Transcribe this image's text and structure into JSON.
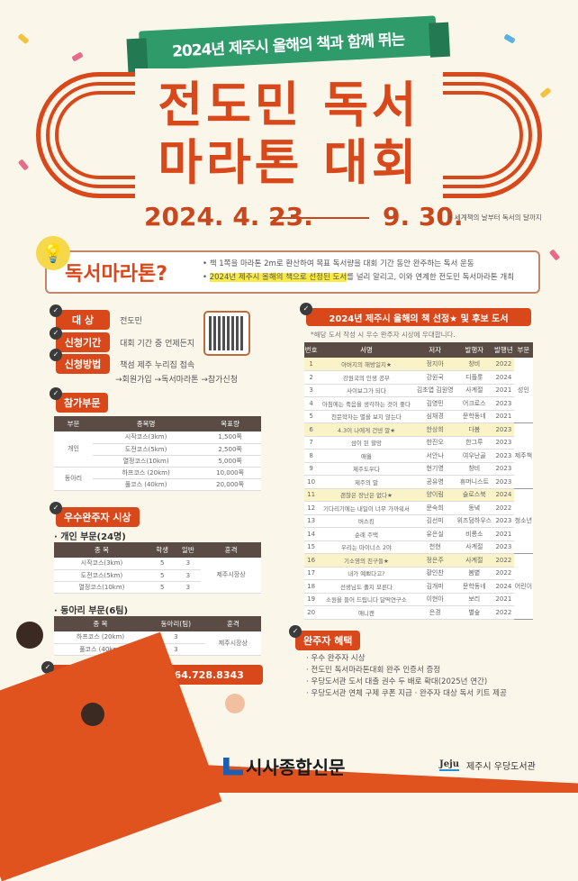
{
  "header": {
    "ribbon": "2024년 제주시 올해의 책과 함께 뛰는",
    "title_line1": "전도민 독서",
    "title_line2": "마라톤 대회",
    "date_start": "2024. 4. 23.",
    "date_end": "9. 30.",
    "date_note": "• 세계책의 날부터 독서의 달까지"
  },
  "intro": {
    "title": "독서마라톤?",
    "bullets": [
      "책 1쪽을 마라톤 2m로 환산하여 목표 독서량을 대회 기간 동안 완주하는 독서 운동"
    ],
    "bullet2_highlight": "2024년 제주시 올해의 책으로 선정된 도서",
    "bullet2_rest": "를 널리 알리고, 이와 연계한 전도민 독서마라톤 개최"
  },
  "apply": {
    "target_label": "대  상",
    "target": "전도민",
    "period_label": "신청기간",
    "period": "대회 기간 중 언제든지",
    "method_label": "신청방법",
    "method1": "책섬 제주 누리집 접속",
    "method2": "→회원가입 →독서마라톤 →참가신청"
  },
  "categories": {
    "title": "참가부문",
    "headers": [
      "부문",
      "종목명",
      "목표량"
    ],
    "groups": [
      {
        "name": "개인",
        "rows": [
          [
            "시작코스(3km)",
            "1,500쪽"
          ],
          [
            "도전코스(5km)",
            "2,500쪽"
          ],
          [
            "열정코스(10km)",
            "5,000쪽"
          ]
        ]
      },
      {
        "name": "동아리",
        "rows": [
          [
            "하프코스 (20km)",
            "10,000쪽"
          ],
          [
            "풀코스 (40km)",
            "20,000쪽"
          ]
        ]
      }
    ]
  },
  "awards": {
    "title": "우수완주자 시상",
    "individual_title": "· 개인 부문(24명)",
    "individual_headers": [
      "종 목",
      "학생",
      "일반",
      "훈격"
    ],
    "individual_rows": [
      [
        "시작코스(3km)",
        "5",
        "3"
      ],
      [
        "도전코스(5km)",
        "5",
        "3"
      ],
      [
        "열정코스(10km)",
        "5",
        "3"
      ]
    ],
    "individual_prize": "제주시장상",
    "club_title": "· 동아리 부문(6팀)",
    "club_headers": [
      "종 목",
      "동아리(팀)",
      "훈격"
    ],
    "club_rows": [
      [
        "하프코스 (20km)",
        "3"
      ],
      [
        "풀코스 (40km)",
        "3"
      ]
    ],
    "club_prize": "제주시장상"
  },
  "contact": "문의 우당도서관 열람팀 064.728.8343",
  "books": {
    "title": "2024년 제주시 올해의 책 선정★ 및 후보 도서",
    "note": "*해당 도서 작성 시 우수 완주자 시상에 우대합니다.",
    "headers": [
      "번호",
      "서명",
      "저자",
      "발행자",
      "발행년",
      "부문"
    ],
    "rows": [
      [
        "1",
        "아버지의 해방일지★",
        "정지아",
        "창비",
        "2022"
      ],
      [
        "2",
        "강원국의 인생 공부",
        "강원국",
        "디플롯",
        "2024"
      ],
      [
        "3",
        "사이보그가 되다",
        "김초엽 김원영",
        "사계절",
        "2021"
      ],
      [
        "4",
        "아침에는 죽음을 생각하는 것이 좋다",
        "김영민",
        "어크로스",
        "2023"
      ],
      [
        "5",
        "천문학자는 별을 보지 않는다",
        "심채경",
        "문학동네",
        "2021"
      ],
      [
        "6",
        "4.3이 나에게 건넨 말★",
        "한상희",
        "다봄",
        "2023"
      ],
      [
        "7",
        "섬이 된 할망",
        "한진오",
        "한그루",
        "2023"
      ],
      [
        "8",
        "애월",
        "서안나",
        "여우난골",
        "2023"
      ],
      [
        "9",
        "제주도우다",
        "현기영",
        "창비",
        "2023"
      ],
      [
        "10",
        "제주의 말",
        "공유영",
        "휴머니스트",
        "2023"
      ],
      [
        "11",
        "괜찮은 장난은 없다★",
        "양이림",
        "슬로스북",
        "2024"
      ],
      [
        "12",
        "기다리기에는 내일이 너무 가까워서",
        "문숙희",
        "동녘",
        "2022"
      ],
      [
        "13",
        "버스킹",
        "김선미",
        "위즈덤하우스",
        "2023"
      ],
      [
        "14",
        "순례 주택",
        "유은실",
        "비룡소",
        "2021"
      ],
      [
        "15",
        "우리는 마이너스 2야",
        "천현",
        "사계절",
        "2023"
      ],
      [
        "16",
        "기소영의 친구들★",
        "정은주",
        "사계절",
        "2022"
      ],
      [
        "17",
        "내가 예쁘다고?",
        "황인찬",
        "봄볕",
        "2022"
      ],
      [
        "18",
        "선생님도 졸지 모른다",
        "김개미",
        "문학동네",
        "2024"
      ],
      [
        "19",
        "소원을 들어 드립니다 달떡연구소",
        "이현아",
        "보리",
        "2021"
      ],
      [
        "20",
        "애니캔",
        "은경",
        "별숲",
        "2022"
      ]
    ],
    "sections": [
      {
        "name": "성인",
        "start": 0,
        "span": 5
      },
      {
        "name": "제주책",
        "start": 5,
        "span": 5
      },
      {
        "name": "청소년",
        "start": 10,
        "span": 5
      },
      {
        "name": "어린이",
        "start": 15,
        "span": 5
      }
    ]
  },
  "benefits": {
    "title": "완주자 혜택",
    "items": [
      "· 우수 완주자 시상",
      "· 전도민 독서마라톤대회 완주 인증서 증정",
      "· 우당도서관 도서 대출 권수 두 배로 확대(2025년 연간)",
      "· 우당도서관 연체 구제 쿠폰 지급   · 완주자 대상 독서 키트 제공"
    ]
  },
  "footer": {
    "press_logo": "시사종합신문",
    "jeju_logo": "Jeju",
    "library": "제주시 우당도서관"
  },
  "colors": {
    "accent": "#d9481a",
    "ribbon": "#2f9a6a",
    "table_header": "#5a4c44",
    "highlight": "#f9ea48"
  }
}
